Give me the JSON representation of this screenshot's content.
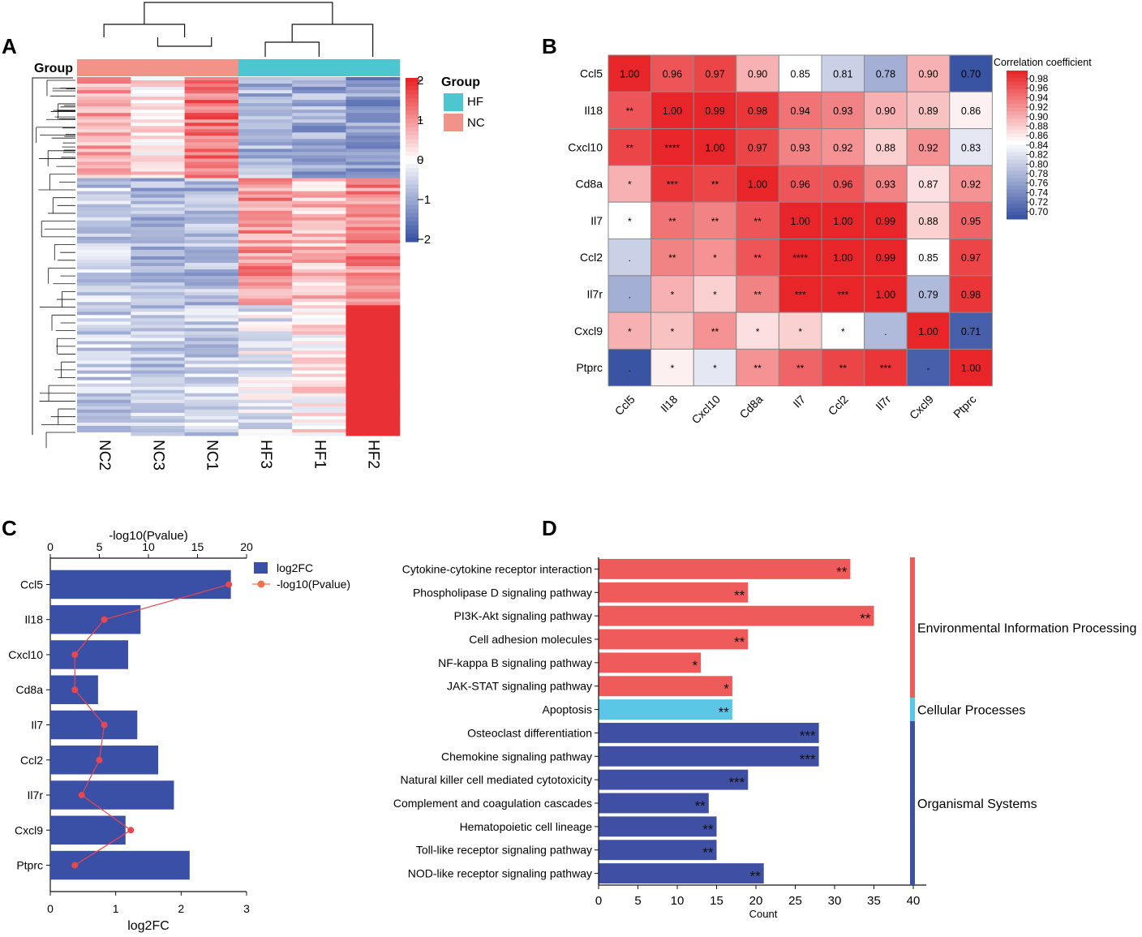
{
  "panel_labels": [
    "A",
    "B",
    "C",
    "D"
  ],
  "chart_data": [
    {
      "type": "heatmap",
      "panel": "A",
      "group_label": "Group",
      "samples": [
        "NC2",
        "NC3",
        "NC1",
        "HF3",
        "HF1",
        "HF2"
      ],
      "sample_groups": [
        "NC",
        "NC",
        "NC",
        "HF",
        "HF",
        "HF"
      ],
      "legend_title": "Group",
      "legend": [
        {
          "name": "HF",
          "color": "#4ec6cf"
        },
        {
          "name": "NC",
          "color": "#f2938a"
        }
      ],
      "colorbar_ticks": [
        "2",
        "1",
        "0",
        "−1",
        "−2"
      ],
      "colorbar_range": [
        -2,
        2
      ],
      "colors": {
        "low": "#3a54a4",
        "mid": "#ffffff",
        "high": "#e8262a"
      },
      "column_means": {
        "NC2": [
          0.8,
          -0.6,
          -0.5
        ],
        "NC3": [
          0.3,
          -0.8,
          -0.6
        ],
        "NC1": [
          1.3,
          -0.8,
          -0.5
        ],
        "HF3": [
          -0.8,
          1.0,
          -0.2
        ],
        "HF1": [
          -1.0,
          0.6,
          0.2
        ],
        "HF2": [
          -1.2,
          1.1,
          1.8
        ]
      }
    },
    {
      "type": "heatmap",
      "panel": "B",
      "genes": [
        "Ccl5",
        "Il18",
        "Cxcl10",
        "Cd8a",
        "Il7",
        "Ccl2",
        "Il7r",
        "Cxcl9",
        "Ptprc"
      ],
      "colorbar_title": "Correlation coefficient",
      "colorbar_ticks": [
        "0.98",
        "0.96",
        "0.94",
        "0.92",
        "0.90",
        "0.88",
        "0.86",
        "0.84",
        "0.82",
        "0.80",
        "0.78",
        "0.76",
        "0.74",
        "0.72",
        "0.70"
      ],
      "colorbar_range": [
        0.7,
        0.99
      ],
      "colors": {
        "low": "#3a54a4",
        "mid": "#ffffff",
        "high": "#e8262a"
      },
      "cells": [
        [
          "1.00",
          "0.96",
          "0.97",
          "0.90",
          "0.85",
          "0.81",
          "0.78",
          "0.90",
          "0.70"
        ],
        [
          "**",
          "1.00",
          "0.99",
          "0.98",
          "0.94",
          "0.93",
          "0.90",
          "0.89",
          "0.86"
        ],
        [
          "**",
          "****",
          "1.00",
          "0.97",
          "0.93",
          "0.92",
          "0.88",
          "0.92",
          "0.83"
        ],
        [
          "*",
          "***",
          "**",
          "1.00",
          "0.96",
          "0.96",
          "0.93",
          "0.87",
          "0.92"
        ],
        [
          "*",
          "**",
          "**",
          "**",
          "1.00",
          "1.00",
          "0.99",
          "0.88",
          "0.95"
        ],
        [
          ".",
          "**",
          "*",
          "**",
          "****",
          "1.00",
          "0.99",
          "0.85",
          "0.97"
        ],
        [
          ".",
          "*",
          "*",
          "**",
          "***",
          "***",
          "1.00",
          "0.79",
          "0.98"
        ],
        [
          "*",
          "*",
          "**",
          "*",
          "*",
          "*",
          ".",
          "1.00",
          "0.71"
        ],
        [
          ".",
          "*",
          "*",
          "**",
          "**",
          "**",
          "***",
          "-",
          "1.00"
        ]
      ]
    },
    {
      "type": "bar",
      "panel": "C",
      "orientation": "horizontal",
      "categories": [
        "Ccl5",
        "Il18",
        "Cxcl10",
        "Cd8a",
        "Il7",
        "Ccl2",
        "Il7r",
        "Cxcl9",
        "Ptprc"
      ],
      "series": [
        {
          "name": "log2FC",
          "type": "bar",
          "axis": "bottom",
          "color": "#3a4fa6",
          "values": [
            2.76,
            1.38,
            1.19,
            0.73,
            1.33,
            1.65,
            1.89,
            1.15,
            2.13
          ]
        },
        {
          "name": "-log10(Pvalue)",
          "type": "line",
          "axis": "top",
          "color": "#e8474f",
          "values": [
            18.2,
            5.5,
            2.5,
            2.5,
            5.5,
            5.0,
            3.2,
            8.2,
            2.5
          ]
        }
      ],
      "xlabel": "log2FC",
      "x2label": "-log10(Pvalue)",
      "xlim": [
        0,
        3
      ],
      "x2lim": [
        0,
        20
      ],
      "xticks": [
        "0",
        "1",
        "2",
        "3"
      ],
      "x2ticks": [
        "0",
        "5",
        "10",
        "15",
        "20"
      ]
    },
    {
      "type": "bar",
      "panel": "D",
      "orientation": "horizontal",
      "categories": [
        "Cytokine-cytokine receptor interaction",
        "Phospholipase D signaling pathway",
        "PI3K-Akt signaling pathway",
        "Cell adhesion molecules",
        "NF-kappa B signaling pathway",
        "JAK-STAT signaling pathway",
        "Apoptosis",
        "Osteoclast differentiation",
        "Chemokine signaling pathway",
        "Natural killer cell mediated cytotoxicity",
        "Complement and coagulation cascades",
        "Hematopoietic cell lineage",
        "Toll-like receptor signaling pathway",
        "NOD-like receptor signaling pathway"
      ],
      "values": [
        32,
        19,
        35,
        19,
        13,
        17,
        17,
        28,
        28,
        19,
        14,
        15,
        15,
        21
      ],
      "significance": [
        "**",
        "**",
        "**",
        "**",
        "*",
        "*",
        "**",
        "***",
        "***",
        "***",
        "**",
        "**",
        "**",
        "**"
      ],
      "class_index": [
        0,
        0,
        0,
        0,
        0,
        0,
        1,
        2,
        2,
        2,
        2,
        2,
        2,
        2
      ],
      "classes": [
        {
          "name": "Environmental Information Processing",
          "color": "#ef5a5b"
        },
        {
          "name": "Cellular Processes",
          "color": "#5bc7e6"
        },
        {
          "name": "Organismal Systems",
          "color": "#3f4fa3"
        }
      ],
      "xlabel": "Count",
      "xlim": [
        0,
        40
      ],
      "xticks": [
        "0",
        "5",
        "10",
        "15",
        "20",
        "25",
        "30",
        "35",
        "40"
      ]
    }
  ]
}
